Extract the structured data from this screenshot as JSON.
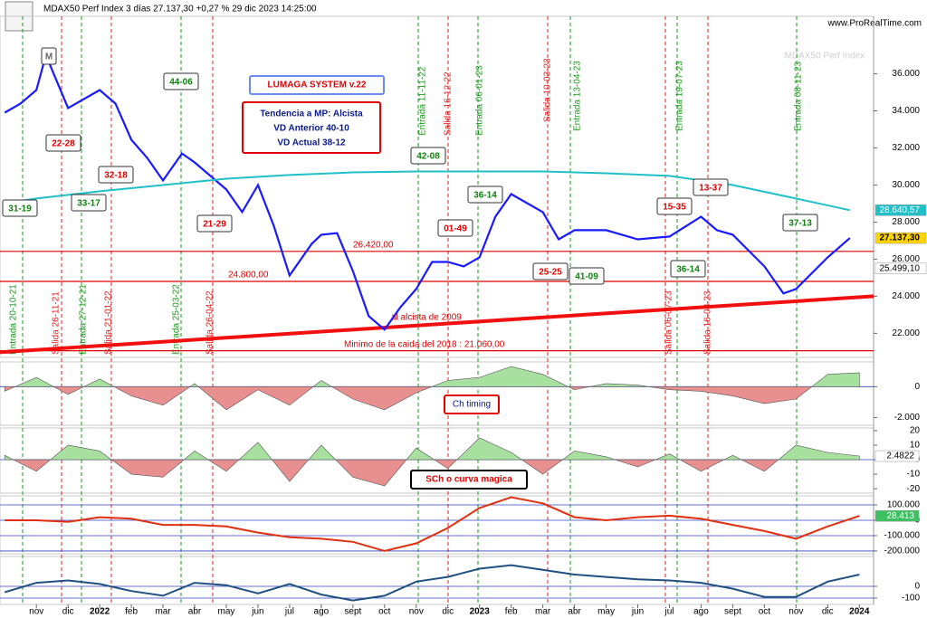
{
  "chart_data": [
    {
      "type": "line",
      "title": "MDAX50 Perf Index 3 días 27.137,30 +0,27 % 29 dic 2023 14:25:00",
      "source": "www.ProRealTime.com",
      "watermark": "MDAX50 Perf Index",
      "xlim": [
        -1.15,
        26.45
      ],
      "xticks": [
        {
          "value": 0,
          "label": "nov"
        },
        {
          "value": 1,
          "label": "dic"
        },
        {
          "value": 2,
          "label": "2022"
        },
        {
          "value": 3,
          "label": "feb"
        },
        {
          "value": 4,
          "label": "mar"
        },
        {
          "value": 5,
          "label": "abr"
        },
        {
          "value": 6,
          "label": "may"
        },
        {
          "value": 7,
          "label": "jun"
        },
        {
          "value": 8,
          "label": "jul"
        },
        {
          "value": 9,
          "label": "ago"
        },
        {
          "value": 10,
          "label": "sept"
        },
        {
          "value": 11,
          "label": "oct"
        },
        {
          "value": 12,
          "label": "nov"
        },
        {
          "value": 13,
          "label": "dic"
        },
        {
          "value": 14,
          "label": "2023"
        },
        {
          "value": 15,
          "label": "feb"
        },
        {
          "value": 16,
          "label": "mar"
        },
        {
          "value": 17,
          "label": "abr"
        },
        {
          "value": 18,
          "label": "may"
        },
        {
          "value": 19,
          "label": "jun"
        },
        {
          "value": 20,
          "label": "jul"
        },
        {
          "value": 21,
          "label": "ago"
        },
        {
          "value": 22,
          "label": "sept"
        },
        {
          "value": 23,
          "label": "oct"
        },
        {
          "value": 24,
          "label": "nov"
        },
        {
          "value": 25,
          "label": "dic"
        },
        {
          "value": 26,
          "label": "2024"
        }
      ],
      "ylim": [
        20700,
        39100
      ],
      "yticks": [
        {
          "value": 22000,
          "label": "22.000"
        },
        {
          "value": 24000,
          "label": "24.000"
        },
        {
          "value": 26000,
          "label": "26.000"
        },
        {
          "value": 28000,
          "label": "28.000"
        },
        {
          "value": 30000,
          "label": "30.000"
        },
        {
          "value": 32000,
          "label": "32.000"
        },
        {
          "value": 34000,
          "label": "34.000"
        },
        {
          "value": 36000,
          "label": "36.000"
        }
      ],
      "series": [
        {
          "color": "#1a1aff",
          "x": [
            -1,
            -0.5,
            0,
            0.3,
            1,
            2,
            2.5,
            3,
            3.5,
            4,
            4.6,
            5,
            6,
            6.5,
            7,
            7.5,
            8,
            8.7,
            9,
            9.5,
            10,
            10.5,
            11,
            11.5,
            12,
            12.5,
            13,
            13.5,
            14,
            14.5,
            15,
            16,
            16.5,
            17,
            18,
            19,
            20,
            21,
            21.5,
            22,
            23,
            23.6,
            24,
            25,
            25.7
          ],
          "values": [
            33900,
            34390,
            35120,
            37000,
            34150,
            35120,
            34390,
            32440,
            31460,
            30240,
            31700,
            31220,
            29760,
            28540,
            30000,
            27800,
            25120,
            26830,
            27320,
            27400,
            25360,
            22930,
            22200,
            23410,
            24390,
            25850,
            25850,
            25610,
            26100,
            28290,
            29510,
            28540,
            27070,
            27560,
            27560,
            27070,
            27220,
            28290,
            27560,
            27320,
            25610,
            24150,
            24390,
            26100,
            27137.3
          ]
        },
        {
          "color": "#20c0c8",
          "x": [
            -1,
            0,
            2,
            4,
            6,
            8,
            10,
            12,
            14,
            16,
            18,
            20,
            22,
            24,
            25.7
          ],
          "values": [
            29020,
            29270,
            29660,
            30000,
            30340,
            30540,
            30680,
            30730,
            30730,
            30730,
            30630,
            30490,
            30000,
            29270,
            28640.57
          ]
        }
      ],
      "levels": [
        {
          "value": 26420,
          "label": "26.420,00"
        },
        {
          "value": 24800,
          "label": "24.800,00"
        },
        {
          "value": 21060,
          "label": "Minimo de la caida del 2018 : 21.060,00"
        }
      ],
      "trendline": {
        "x": [
          -1.15,
          26.45
        ],
        "values": [
          20980,
          24000
        ],
        "label": "al alcista de 2009"
      },
      "price_labels": [
        {
          "value": 28640.57,
          "label": "28.640,57",
          "color": "#20c0c8"
        },
        {
          "value": 27137.3,
          "label": "27.137,30",
          "color": "#ffd400"
        },
        {
          "value": 25499.1,
          "label": "25.499,10",
          "color": "#ffffff"
        }
      ],
      "signals": [
        "Entrada 20-10-21",
        "Salida 26-11-21",
        "Entrada 27-12-21",
        "Salida 21-01-22",
        "Entrada 25-03-22",
        "Salida 26-04-22",
        "Entrada 11-11-22",
        "Salida 16-12-22",
        "Entrada 06-01-23",
        "Salida 10-03-23",
        "Entrada 13-04-23",
        "Salida 06-07-23",
        "Entrada 19-07-23",
        "Salida 16-08-23",
        "Entrada 08-11-23"
      ],
      "boxes": [
        "M",
        "22-28",
        "32-18",
        "44-06",
        "31-19",
        "33-17",
        "21-29",
        "42-08",
        "36-14",
        "01-49",
        "25-25",
        "41-09",
        "15-35",
        "13-37",
        "36-14",
        "37-13"
      ],
      "system": "LUMAGA SYSTEM v.22",
      "info": [
        "Tendencia a MP: Alcista",
        "VD Anterior 40-10",
        "VD Actual 38-12"
      ]
    },
    {
      "type": "area",
      "label": "Ch timing",
      "x": [
        -1,
        0,
        1,
        2,
        3,
        4,
        5,
        6,
        7,
        8,
        9,
        10,
        11,
        12,
        13,
        14,
        15,
        16,
        17,
        18,
        19,
        20,
        21,
        22,
        23,
        24,
        25,
        26
      ],
      "values": [
        -300,
        600,
        -500,
        500,
        -600,
        -1200,
        200,
        -1500,
        -200,
        -1200,
        400,
        -800,
        -1500,
        -400,
        400,
        600,
        1300,
        800,
        -200,
        200,
        100,
        -200,
        -300,
        -600,
        -1100,
        -800,
        800,
        900
      ],
      "ylim": [
        -2500,
        1600
      ],
      "yticks": [
        0,
        {
          "value": -2000,
          "label": "-2.000"
        }
      ]
    },
    {
      "type": "area",
      "label": "SCh o curva magica",
      "x": [
        -1,
        0,
        1,
        2,
        3,
        4,
        5,
        6,
        7,
        8,
        9,
        10,
        11,
        12,
        13,
        14,
        15,
        16,
        17,
        18,
        19,
        20,
        21,
        22,
        23,
        24,
        25,
        26
      ],
      "values": [
        3,
        -8,
        10,
        6,
        -10,
        -12,
        6,
        -8,
        12,
        -15,
        10,
        -12,
        -18,
        8,
        -6,
        15,
        5,
        -10,
        6,
        2,
        -5,
        4,
        -8,
        3,
        -8,
        10,
        5,
        2.4822
      ],
      "ylim": [
        -23,
        21.8
      ],
      "yticks": [
        20,
        10,
        0,
        -10,
        -20
      ]
    },
    {
      "type": "line",
      "color": "#e03010",
      "x": [
        -1,
        0,
        1,
        2,
        3,
        4,
        5,
        6,
        7,
        8,
        9,
        10,
        11,
        12,
        13,
        14,
        15,
        16,
        17,
        18,
        19,
        20,
        21,
        22,
        23,
        24,
        25,
        26
      ],
      "values": [
        0,
        0,
        -10000,
        20000,
        10000,
        -30000,
        -30000,
        -40000,
        -80000,
        -110000,
        -120000,
        -140000,
        -200000,
        -150000,
        -50000,
        80000,
        150000,
        110000,
        20000,
        0,
        20000,
        30000,
        10000,
        -30000,
        -70000,
        -120000,
        -40000,
        28413
      ],
      "last_label": "28.413",
      "ylim": [
        -218000,
        159000
      ],
      "yticks": [
        {
          "value": 100000,
          "label": "100.000"
        },
        0,
        {
          "value": -100000,
          "label": "-100.000"
        },
        {
          "value": -200000,
          "label": "-200.000"
        }
      ]
    },
    {
      "type": "line",
      "color": "#205080",
      "x": [
        -1,
        0,
        1,
        2,
        3,
        4,
        5,
        6,
        7,
        8,
        9,
        10,
        11,
        12,
        13,
        14,
        15,
        16,
        17,
        18,
        19,
        20,
        21,
        22,
        23,
        24,
        25,
        26
      ],
      "values": [
        -50,
        30,
        50,
        20,
        -40,
        -80,
        30,
        10,
        -60,
        20,
        -70,
        -120,
        -80,
        40,
        80,
        150,
        180,
        140,
        100,
        80,
        60,
        50,
        30,
        -20,
        -90,
        -90,
        40,
        100
      ],
      "ylim": [
        -154,
        254
      ],
      "yticks": [
        0,
        -100
      ]
    }
  ]
}
